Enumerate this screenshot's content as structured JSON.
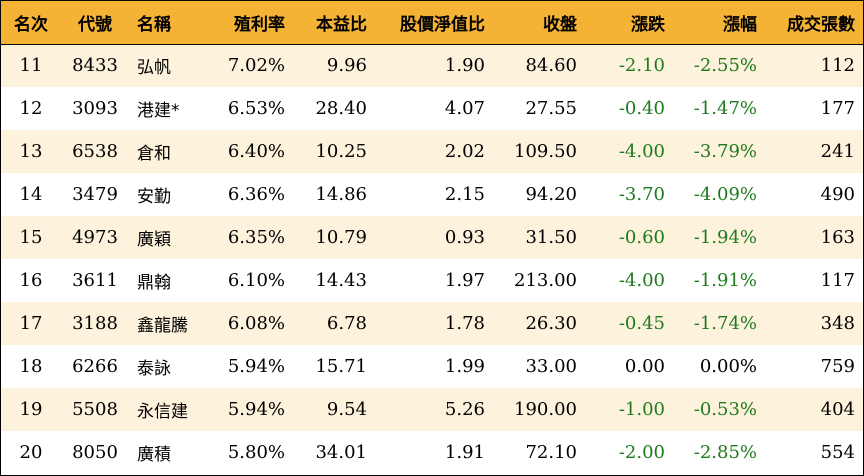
{
  "columns": [
    "名次",
    "代號",
    "名稱",
    "殖利率",
    "本益比",
    "股價淨值比",
    "收盤",
    "漲跌",
    "漲幅",
    "成交張數"
  ],
  "rows": [
    {
      "rank": "11",
      "code": "8433",
      "name": "弘帆",
      "yield": "7.02%",
      "pe": "9.96",
      "pb": "1.90",
      "close": "84.60",
      "change": "-2.10",
      "change_pct": "-2.55%",
      "volume": "112"
    },
    {
      "rank": "12",
      "code": "3093",
      "name": "港建*",
      "yield": "6.53%",
      "pe": "28.40",
      "pb": "4.07",
      "close": "27.55",
      "change": "-0.40",
      "change_pct": "-1.47%",
      "volume": "177"
    },
    {
      "rank": "13",
      "code": "6538",
      "name": "倉和",
      "yield": "6.40%",
      "pe": "10.25",
      "pb": "2.02",
      "close": "109.50",
      "change": "-4.00",
      "change_pct": "-3.79%",
      "volume": "241"
    },
    {
      "rank": "14",
      "code": "3479",
      "name": "安勤",
      "yield": "6.36%",
      "pe": "14.86",
      "pb": "2.15",
      "close": "94.20",
      "change": "-3.70",
      "change_pct": "-4.09%",
      "volume": "490"
    },
    {
      "rank": "15",
      "code": "4973",
      "name": "廣穎",
      "yield": "6.35%",
      "pe": "10.79",
      "pb": "0.93",
      "close": "31.50",
      "change": "-0.60",
      "change_pct": "-1.94%",
      "volume": "163"
    },
    {
      "rank": "16",
      "code": "3611",
      "name": "鼎翰",
      "yield": "6.10%",
      "pe": "14.43",
      "pb": "1.97",
      "close": "213.00",
      "change": "-4.00",
      "change_pct": "-1.91%",
      "volume": "117"
    },
    {
      "rank": "17",
      "code": "3188",
      "name": "鑫龍騰",
      "yield": "6.08%",
      "pe": "6.78",
      "pb": "1.78",
      "close": "26.30",
      "change": "-0.45",
      "change_pct": "-1.74%",
      "volume": "348"
    },
    {
      "rank": "18",
      "code": "6266",
      "name": "泰詠",
      "yield": "5.94%",
      "pe": "15.71",
      "pb": "1.99",
      "close": "33.00",
      "change": "0.00",
      "change_pct": "0.00%",
      "volume": "759"
    },
    {
      "rank": "19",
      "code": "5508",
      "name": "永信建",
      "yield": "5.94%",
      "pe": "9.54",
      "pb": "5.26",
      "close": "190.00",
      "change": "-1.00",
      "change_pct": "-0.53%",
      "volume": "404"
    },
    {
      "rank": "20",
      "code": "8050",
      "name": "廣積",
      "yield": "5.80%",
      "pe": "34.01",
      "pb": "1.91",
      "close": "72.10",
      "change": "-2.00",
      "change_pct": "-2.85%",
      "volume": "554"
    }
  ],
  "colors": {
    "header_bg": "#f5b335",
    "row_odd_bg": "#fdf2dc",
    "row_even_bg": "#ffffff",
    "negative_text": "#1e7b1e"
  }
}
